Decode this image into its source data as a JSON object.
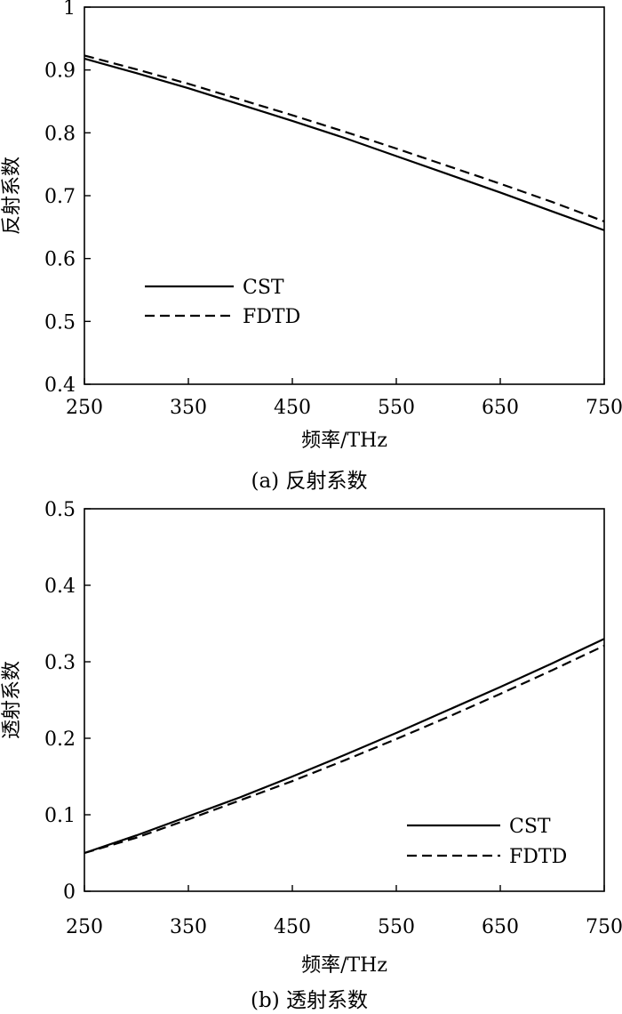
{
  "chart_data": [
    {
      "type": "line",
      "caption": "(a) 反射系数",
      "xlabel": "频率/THz",
      "ylabel": "反射系数",
      "xlim": [
        250,
        750
      ],
      "ylim": [
        0.4,
        1
      ],
      "xticks": [
        "250",
        "350",
        "450",
        "550",
        "650",
        "750"
      ],
      "yticks": [
        "0.4",
        "0.5",
        "0.6",
        "0.7",
        "0.8",
        "0.9",
        "1"
      ],
      "x": [
        250,
        300,
        350,
        400,
        450,
        500,
        550,
        600,
        650,
        700,
        750
      ],
      "series": [
        {
          "name": "CST",
          "style": "solid",
          "values": [
            0.918,
            0.895,
            0.871,
            0.845,
            0.819,
            0.792,
            0.763,
            0.734,
            0.705,
            0.675,
            0.645
          ]
        },
        {
          "name": "FDTD",
          "style": "dashed",
          "values": [
            0.923,
            0.901,
            0.878,
            0.853,
            0.828,
            0.802,
            0.775,
            0.747,
            0.719,
            0.69,
            0.659
          ]
        }
      ],
      "legend_position": "lower-left"
    },
    {
      "type": "line",
      "caption": "(b) 透射系数",
      "xlabel": "频率/THz",
      "ylabel": "透射系数",
      "xlim": [
        250,
        750
      ],
      "ylim": [
        0,
        0.5
      ],
      "xticks": [
        "250",
        "350",
        "450",
        "550",
        "650",
        "750"
      ],
      "yticks": [
        "0",
        "0.1",
        "0.2",
        "0.3",
        "0.4",
        "0.5"
      ],
      "x": [
        250,
        300,
        350,
        400,
        450,
        500,
        550,
        600,
        650,
        700,
        750
      ],
      "series": [
        {
          "name": "CST",
          "style": "solid",
          "values": [
            0.05,
            0.073,
            0.098,
            0.123,
            0.15,
            0.178,
            0.207,
            0.237,
            0.267,
            0.298,
            0.33
          ]
        },
        {
          "name": "FDTD",
          "style": "dashed",
          "values": [
            0.05,
            0.07,
            0.094,
            0.119,
            0.144,
            0.171,
            0.199,
            0.228,
            0.258,
            0.289,
            0.321
          ]
        }
      ],
      "legend_position": "lower-right"
    }
  ]
}
